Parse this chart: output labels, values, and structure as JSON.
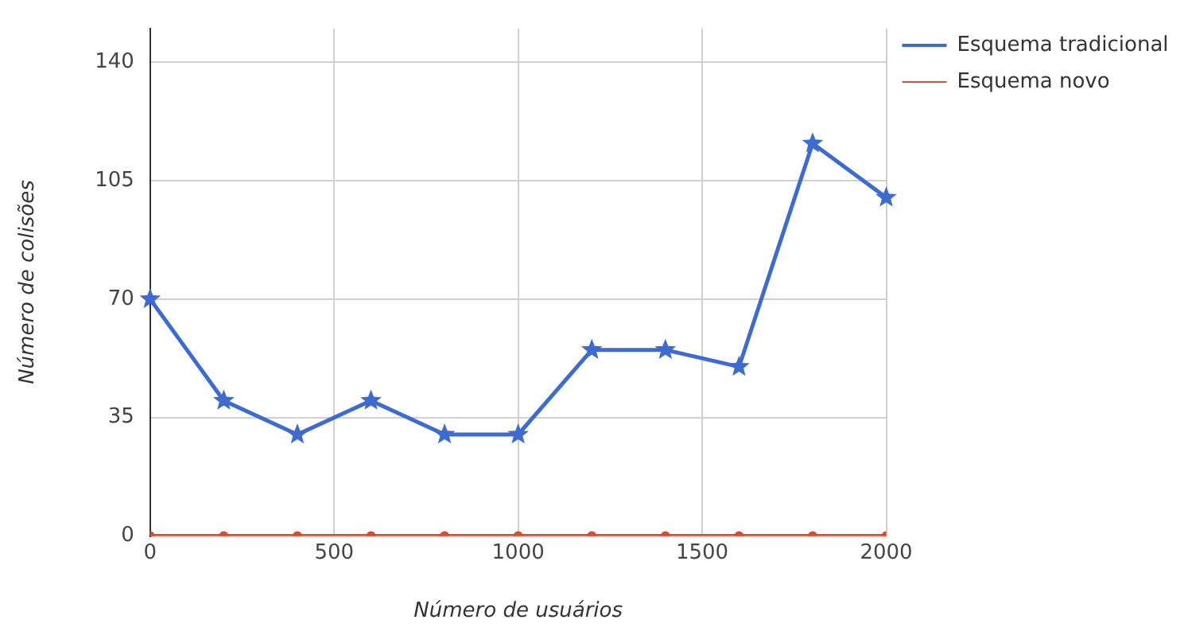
{
  "chart_data": {
    "type": "line",
    "xlabel": "Número de usuários",
    "ylabel": "Número de colisões",
    "x": [
      0,
      200,
      400,
      600,
      800,
      1000,
      1200,
      1400,
      1600,
      1800,
      2000
    ],
    "series": [
      {
        "name": "Esquema tradicional",
        "color": "#3d6bd0",
        "marker": "star",
        "values": [
          70,
          40,
          30,
          40,
          30,
          30,
          55,
          55,
          50,
          116,
          100
        ]
      },
      {
        "name": "Esquema novo",
        "color": "#dc4b2a",
        "marker": "circle",
        "values": [
          0,
          0,
          0,
          0,
          0,
          0,
          0,
          0,
          0,
          0,
          0
        ]
      }
    ],
    "xlim": [
      0,
      2000
    ],
    "xticks": [
      0,
      500,
      1000,
      1500,
      2000
    ],
    "ylim": [
      0,
      150
    ],
    "yticks": [
      0,
      35,
      70,
      105,
      140
    ],
    "grid": true,
    "legend": "top right",
    "line_style": "solid"
  }
}
